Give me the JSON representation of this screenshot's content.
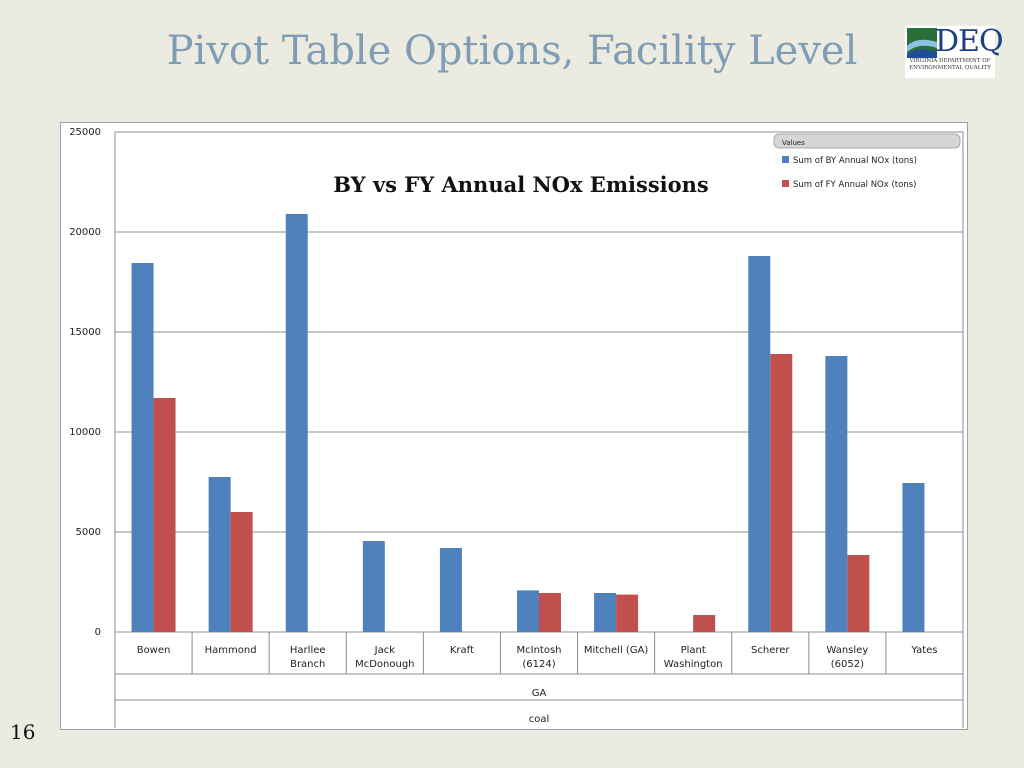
{
  "slide": {
    "title": "Pivot Table Options, Facility Level",
    "page_number": "16"
  },
  "logo": {
    "word": "DEQ",
    "subtitle_line1": "VIRGINIA DEPARTMENT OF",
    "subtitle_line2": "ENVIRONMENTAL QUALITY"
  },
  "chart_data": {
    "type": "bar",
    "title": "BY vs FY Annual NOx Emissions",
    "legend_title": "Values",
    "legend_position": "top-right",
    "categories": [
      [
        "Bowen"
      ],
      [
        "Hammond"
      ],
      [
        "Harllee",
        "Branch"
      ],
      [
        "Jack",
        "McDonough"
      ],
      [
        "Kraft"
      ],
      [
        "McIntosh",
        "(6124)"
      ],
      [
        "Mitchell (GA)"
      ],
      [
        "Plant",
        "Washington"
      ],
      [
        "Scherer"
      ],
      [
        "Wansley",
        "(6052)"
      ],
      [
        "Yates"
      ]
    ],
    "group_labels": [
      "GA",
      "coal"
    ],
    "series": [
      {
        "name": "Sum of  BY Annual NOx (tons)",
        "color": "#4f81bd",
        "values": [
          18450,
          7750,
          20900,
          4550,
          4200,
          2080,
          1950,
          0,
          18800,
          13800,
          7450
        ]
      },
      {
        "name": "Sum of  FY Annual NOx (tons)",
        "color": "#c0504d",
        "values": [
          11700,
          6000,
          0,
          0,
          0,
          1950,
          1870,
          850,
          13900,
          3850,
          0
        ]
      }
    ],
    "y_ticks": [
      0,
      5000,
      10000,
      15000,
      20000,
      25000
    ],
    "ylim": [
      0,
      25000
    ],
    "grid": true
  }
}
